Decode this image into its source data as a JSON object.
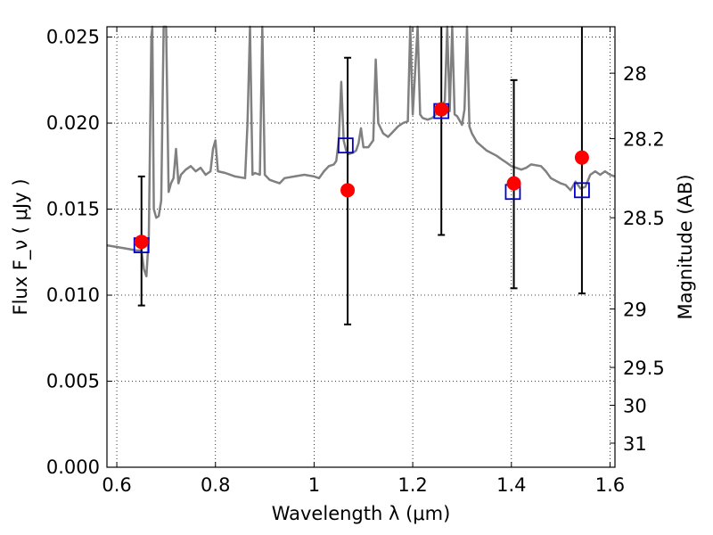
{
  "chart_data": {
    "type": "scatter",
    "xlabel": "Wavelength  λ (μm)",
    "ylabel": "Flux  F_ν  ( μJy )",
    "y2label": "Magnitude (AB)",
    "xlim": [
      0.58,
      1.61
    ],
    "ylim": [
      0.0,
      0.0256
    ],
    "x_ticks": [
      0.6,
      0.8,
      1.0,
      1.2,
      1.4,
      1.6
    ],
    "x_tick_labels": [
      "0.6",
      "0.8",
      "1",
      "1.2",
      "1.4",
      "1.6"
    ],
    "y_ticks": [
      0.0,
      0.005,
      0.01,
      0.015,
      0.02,
      0.025
    ],
    "y_tick_labels": [
      "0.000",
      "0.005",
      "0.010",
      "0.015",
      "0.020",
      "0.025"
    ],
    "y2_ticks": [
      {
        "label": "28",
        "flux": 0.0229
      },
      {
        "label": "28.2",
        "flux": 0.0191
      },
      {
        "label": "28.5",
        "flux": 0.0145
      },
      {
        "label": "29",
        "flux": 0.0092
      },
      {
        "label": "29.5",
        "flux": 0.0058
      },
      {
        "label": "30",
        "flux": 0.0036
      },
      {
        "label": "31",
        "flux": 0.0014
      }
    ],
    "grid": true,
    "series": [
      {
        "kind": "line",
        "color": "#808080",
        "points": [
          [
            0.58,
            0.0129
          ],
          [
            0.6,
            0.0128
          ],
          [
            0.62,
            0.0127
          ],
          [
            0.64,
            0.0126
          ],
          [
            0.65,
            0.0126
          ],
          [
            0.655,
            0.0115
          ],
          [
            0.66,
            0.0111
          ],
          [
            0.665,
            0.0135
          ],
          [
            0.67,
            0.025
          ],
          [
            0.672,
            0.0256
          ],
          [
            0.675,
            0.015
          ],
          [
            0.68,
            0.0145
          ],
          [
            0.685,
            0.0146
          ],
          [
            0.69,
            0.0155
          ],
          [
            0.695,
            0.0256
          ],
          [
            0.7,
            0.0256
          ],
          [
            0.705,
            0.016
          ],
          [
            0.71,
            0.0165
          ],
          [
            0.715,
            0.0168
          ],
          [
            0.72,
            0.0185
          ],
          [
            0.725,
            0.0165
          ],
          [
            0.73,
            0.017
          ],
          [
            0.74,
            0.0173
          ],
          [
            0.75,
            0.0175
          ],
          [
            0.76,
            0.0172
          ],
          [
            0.77,
            0.0174
          ],
          [
            0.78,
            0.017
          ],
          [
            0.79,
            0.0172
          ],
          [
            0.795,
            0.0185
          ],
          [
            0.8,
            0.019
          ],
          [
            0.805,
            0.0172
          ],
          [
            0.82,
            0.0171
          ],
          [
            0.84,
            0.0169
          ],
          [
            0.86,
            0.0168
          ],
          [
            0.865,
            0.02
          ],
          [
            0.87,
            0.0256
          ],
          [
            0.875,
            0.017
          ],
          [
            0.88,
            0.0171
          ],
          [
            0.89,
            0.017
          ],
          [
            0.895,
            0.0256
          ],
          [
            0.9,
            0.017
          ],
          [
            0.91,
            0.0167
          ],
          [
            0.92,
            0.0166
          ],
          [
            0.93,
            0.0165
          ],
          [
            0.94,
            0.0168
          ],
          [
            0.96,
            0.0169
          ],
          [
            0.98,
            0.017
          ],
          [
            1.0,
            0.0169
          ],
          [
            1.01,
            0.0168
          ],
          [
            1.02,
            0.0172
          ],
          [
            1.03,
            0.0175
          ],
          [
            1.04,
            0.0176
          ],
          [
            1.045,
            0.0178
          ],
          [
            1.05,
            0.019
          ],
          [
            1.055,
            0.0224
          ],
          [
            1.06,
            0.019
          ],
          [
            1.065,
            0.0184
          ],
          [
            1.07,
            0.0182
          ],
          [
            1.08,
            0.0183
          ],
          [
            1.085,
            0.0184
          ],
          [
            1.09,
            0.0188
          ],
          [
            1.095,
            0.0197
          ],
          [
            1.1,
            0.0186
          ],
          [
            1.11,
            0.0186
          ],
          [
            1.12,
            0.019
          ],
          [
            1.125,
            0.0237
          ],
          [
            1.13,
            0.02
          ],
          [
            1.14,
            0.0194
          ],
          [
            1.15,
            0.0192
          ],
          [
            1.16,
            0.0195
          ],
          [
            1.17,
            0.0198
          ],
          [
            1.18,
            0.02
          ],
          [
            1.19,
            0.0201
          ],
          [
            1.195,
            0.0256
          ],
          [
            1.2,
            0.0205
          ],
          [
            1.21,
            0.0256
          ],
          [
            1.215,
            0.0205
          ],
          [
            1.22,
            0.0203
          ],
          [
            1.23,
            0.0202
          ],
          [
            1.24,
            0.0203
          ],
          [
            1.25,
            0.0206
          ],
          [
            1.255,
            0.0208
          ],
          [
            1.26,
            0.021
          ],
          [
            1.265,
            0.0213
          ],
          [
            1.27,
            0.0256
          ],
          [
            1.275,
            0.0207
          ],
          [
            1.28,
            0.0256
          ],
          [
            1.285,
            0.0205
          ],
          [
            1.29,
            0.0204
          ],
          [
            1.3,
            0.0199
          ],
          [
            1.305,
            0.0208
          ],
          [
            1.31,
            0.0256
          ],
          [
            1.315,
            0.0198
          ],
          [
            1.32,
            0.0194
          ],
          [
            1.33,
            0.0189
          ],
          [
            1.35,
            0.0184
          ],
          [
            1.37,
            0.0181
          ],
          [
            1.38,
            0.0179
          ],
          [
            1.39,
            0.0177
          ],
          [
            1.4,
            0.0175
          ],
          [
            1.42,
            0.0173
          ],
          [
            1.43,
            0.0174
          ],
          [
            1.44,
            0.0176
          ],
          [
            1.46,
            0.0175
          ],
          [
            1.47,
            0.0172
          ],
          [
            1.48,
            0.0168
          ],
          [
            1.5,
            0.0165
          ],
          [
            1.51,
            0.0164
          ],
          [
            1.52,
            0.0161
          ],
          [
            1.53,
            0.0166
          ],
          [
            1.54,
            0.0162
          ],
          [
            1.55,
            0.0163
          ],
          [
            1.56,
            0.017
          ],
          [
            1.57,
            0.0172
          ],
          [
            1.58,
            0.017
          ],
          [
            1.59,
            0.0172
          ],
          [
            1.6,
            0.017
          ],
          [
            1.61,
            0.0169
          ]
        ]
      },
      {
        "kind": "markers-circle",
        "color": "#ff0000",
        "x": [
          0.65,
          1.068,
          1.258,
          1.405,
          1.543
        ],
        "y": [
          0.0131,
          0.0161,
          0.0208,
          0.0165,
          0.018
        ]
      },
      {
        "kind": "markers-square",
        "color": "#0000cc",
        "x": [
          0.65,
          1.064,
          1.258,
          1.403,
          1.543
        ],
        "y": [
          0.0129,
          0.0187,
          0.0207,
          0.016,
          0.0161
        ]
      },
      {
        "kind": "errorbars",
        "color": "#000000",
        "x": [
          0.65,
          1.068,
          1.258,
          1.405,
          1.543
        ],
        "y_low": [
          0.0094,
          0.0083,
          0.0135,
          0.0104,
          0.0101
        ],
        "y_high": [
          0.0169,
          0.0238,
          0.0256,
          0.0225,
          0.0256
        ]
      }
    ]
  }
}
